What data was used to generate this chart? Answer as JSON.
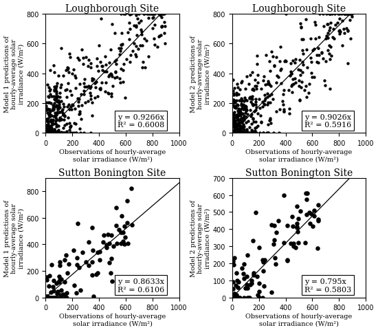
{
  "panels": [
    {
      "title": "Loughborough Site",
      "ylabel": "Model 1 predictions of\nhourly-average solar\nirradiance (W/m²)",
      "xlabel": "Observations of hourly-average\nsolar irradiance (W/m²)",
      "slope": 0.9266,
      "r2": 0.6008,
      "eq_text": "y = 0.9266x",
      "r2_text": "R² = 0.6008",
      "seed": 42,
      "n_points": 500,
      "cluster": "loughborough",
      "ylim": [
        0,
        800
      ],
      "yticks": [
        0,
        200,
        400,
        600,
        800
      ]
    },
    {
      "title": "Loughborough Site",
      "ylabel": "Model 2 predictions of\nhourly-average solar\nirradiance (W/m²)",
      "xlabel": "Observations of hourly-average\nsolar irradiance (W/m²)",
      "slope": 0.9026,
      "r2": 0.5916,
      "eq_text": "y = 0.9026x",
      "r2_text": "R² = 0.5916",
      "seed": 43,
      "n_points": 500,
      "cluster": "loughborough",
      "ylim": [
        0,
        800
      ],
      "yticks": [
        0,
        200,
        400,
        600,
        800
      ]
    },
    {
      "title": "Sutton Bonington Site",
      "ylabel": "Model 1 predictions of\nhourly-average solar\nirradiance (W/m²)",
      "xlabel": "Observations of hourly-average\nsolar irradiance (W/m²)",
      "slope": 0.8633,
      "r2": 0.6106,
      "eq_text": "y = 0.8633x",
      "r2_text": "R² = 0.6106",
      "seed": 44,
      "n_points": 100,
      "cluster": "sutton",
      "ylim": [
        0,
        900
      ],
      "yticks": [
        0,
        200,
        400,
        600,
        800
      ]
    },
    {
      "title": "Sutton Bonington Site",
      "ylabel": "Model 2 predictions of\nhourly-average solar\nirradiance (W/m²)",
      "xlabel": "Observations of hourly-average\nsolar irradiance (W/m²)",
      "slope": 0.795,
      "r2": 0.5803,
      "eq_text": "y = 0.795x",
      "r2_text": "R² = 0.5803",
      "seed": 45,
      "n_points": 100,
      "cluster": "sutton",
      "ylim": [
        0,
        700
      ],
      "yticks": [
        0,
        100,
        200,
        300,
        400,
        500,
        600,
        700
      ]
    }
  ],
  "xlim": [
    0,
    1000
  ],
  "xticks": [
    0,
    200,
    400,
    600,
    800,
    1000
  ],
  "dot_color": "#000000",
  "dot_size_lough": 10,
  "dot_size_sutton": 22,
  "line_color": "#000000",
  "title_fontsize": 10,
  "label_fontsize": 7,
  "tick_fontsize": 7,
  "annot_fontsize": 8
}
